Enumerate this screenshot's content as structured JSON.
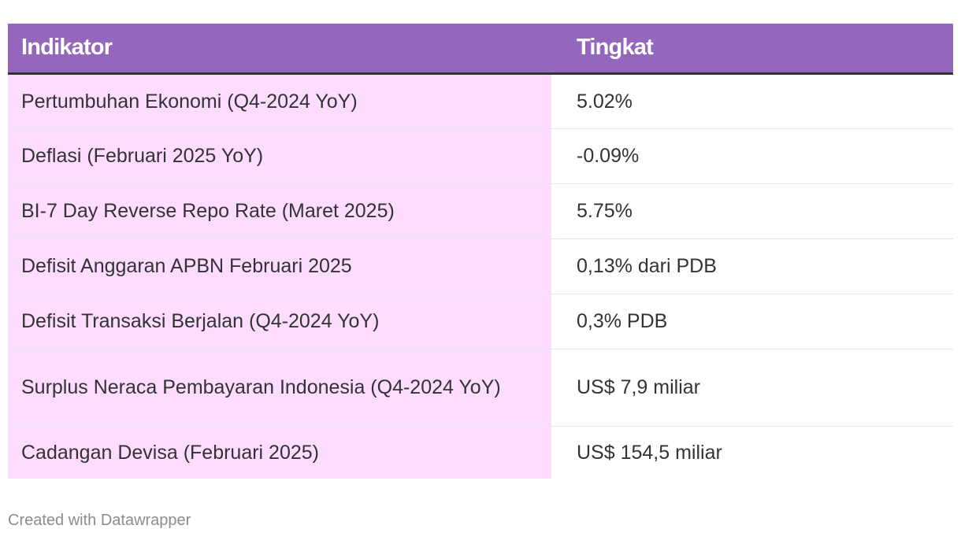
{
  "chart_data": {
    "type": "table",
    "columns": [
      "Indikator",
      "Tingkat"
    ],
    "rows": [
      {
        "indikator": "Pertumbuhan Ekonomi (Q4-2024 YoY)",
        "tingkat": "5.02%"
      },
      {
        "indikator": "Deflasi (Februari 2025 YoY)",
        "tingkat": "-0.09%"
      },
      {
        "indikator": "BI-7 Day Reverse Repo Rate (Maret 2025)",
        "tingkat": "5.75%"
      },
      {
        "indikator": "Defisit Anggaran APBN Februari 2025",
        "tingkat": "0,13% dari PDB"
      },
      {
        "indikator": "Defisit Transaksi Berjalan (Q4-2024 YoY)",
        "tingkat": "0,3% PDB"
      },
      {
        "indikator": "Surplus Neraca Pembayaran Indonesia (Q4-2024 YoY)",
        "tingkat": "US$ 7,9 miliar"
      },
      {
        "indikator": "Cadangan Devisa (Februari 2025)",
        "tingkat": "US$ 154,5 miliar"
      }
    ],
    "header_color": "#9467bd",
    "highlight_column_color": "#fddcff"
  },
  "footer": {
    "credit": "Created with Datawrapper"
  }
}
